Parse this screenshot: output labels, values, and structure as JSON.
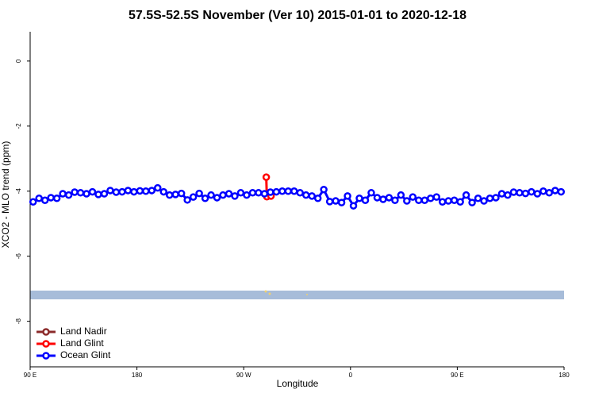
{
  "chart_data": {
    "type": "line",
    "title": "57.5S-52.5S November (Ver 10)   2015-01-01 to 2020-12-18",
    "x_label": "Longitude",
    "y_label": "XCO2 - MLO trend (ppm)",
    "xlim": [
      90,
      540
    ],
    "ylim": [
      -9.4,
      0.9
    ],
    "xticks": [
      {
        "value": 90,
        "label": "90 E"
      },
      180,
      {
        "value": 270,
        "label": "90 W"
      },
      {
        "value": 360,
        "label": "0"
      },
      {
        "value": 450,
        "label": "90 E"
      },
      {
        "value": 540,
        "label": "180"
      }
    ],
    "yticks": [
      0,
      -2,
      -4,
      -6,
      -8
    ],
    "legend": "bottomleft",
    "series": [
      {
        "name": "Land Nadir",
        "color": "#8b2a2a",
        "x": [],
        "values": []
      },
      {
        "name": "Land Glint",
        "color": "#ff0000",
        "x": [
          289,
          289.5,
          293
        ],
        "values": [
          -3.57,
          -4.17,
          -4.15
        ]
      },
      {
        "name": "Ocean Glint",
        "color": "#0000ff",
        "x": [
          92.5,
          97.5,
          102.5,
          107.5,
          112.5,
          117.5,
          122.5,
          127.5,
          132.5,
          137.5,
          142.5,
          147.5,
          152.5,
          157.5,
          162.5,
          167.5,
          172.5,
          177.5,
          182.5,
          187.5,
          192.5,
          197.5,
          202.5,
          207.5,
          212.5,
          217.5,
          222.5,
          227.5,
          232.5,
          237.5,
          242.5,
          247.5,
          252.5,
          257.5,
          262.5,
          267.5,
          272.5,
          277.5,
          282.5,
          287.5,
          292.5,
          297.5,
          302.5,
          307.5,
          312.5,
          317.5,
          322.5,
          327.5,
          332.5,
          337.5,
          342.5,
          347.5,
          352.5,
          357.5,
          362.5,
          367.5,
          372.5,
          377.5,
          382.5,
          387.5,
          392.5,
          397.5,
          402.5,
          407.5,
          412.5,
          417.5,
          422.5,
          427.5,
          432.5,
          437.5,
          442.5,
          447.5,
          452.5,
          457.5,
          462.5,
          467.5,
          472.5,
          477.5,
          482.5,
          487.5,
          492.5,
          497.5,
          502.5,
          507.5,
          512.5,
          517.5,
          522.5,
          527.5,
          532.5,
          537.5
        ],
        "values": [
          -4.33,
          -4.22,
          -4.28,
          -4.2,
          -4.22,
          -4.08,
          -4.12,
          -4.03,
          -4.05,
          -4.08,
          -4.02,
          -4.1,
          -4.08,
          -3.98,
          -4.03,
          -4.02,
          -3.98,
          -4.02,
          -3.99,
          -4.0,
          -3.98,
          -3.9,
          -4.02,
          -4.12,
          -4.1,
          -4.07,
          -4.27,
          -4.18,
          -4.07,
          -4.22,
          -4.12,
          -4.2,
          -4.12,
          -4.08,
          -4.15,
          -4.05,
          -4.12,
          -4.05,
          -4.05,
          -4.08,
          -4.03,
          -4.02,
          -4.0,
          -4.0,
          -4.0,
          -4.05,
          -4.12,
          -4.15,
          -4.22,
          -3.95,
          -4.32,
          -4.3,
          -4.35,
          -4.15,
          -4.45,
          -4.22,
          -4.28,
          -4.05,
          -4.2,
          -4.25,
          -4.2,
          -4.28,
          -4.12,
          -4.3,
          -4.18,
          -4.28,
          -4.28,
          -4.22,
          -4.18,
          -4.33,
          -4.3,
          -4.28,
          -4.33,
          -4.12,
          -4.35,
          -4.22,
          -4.3,
          -4.22,
          -4.2,
          -4.08,
          -4.12,
          -4.03,
          -4.05,
          -4.07,
          -4.02,
          -4.08,
          -4.0,
          -4.05,
          -3.98,
          -4.02
        ]
      }
    ]
  }
}
